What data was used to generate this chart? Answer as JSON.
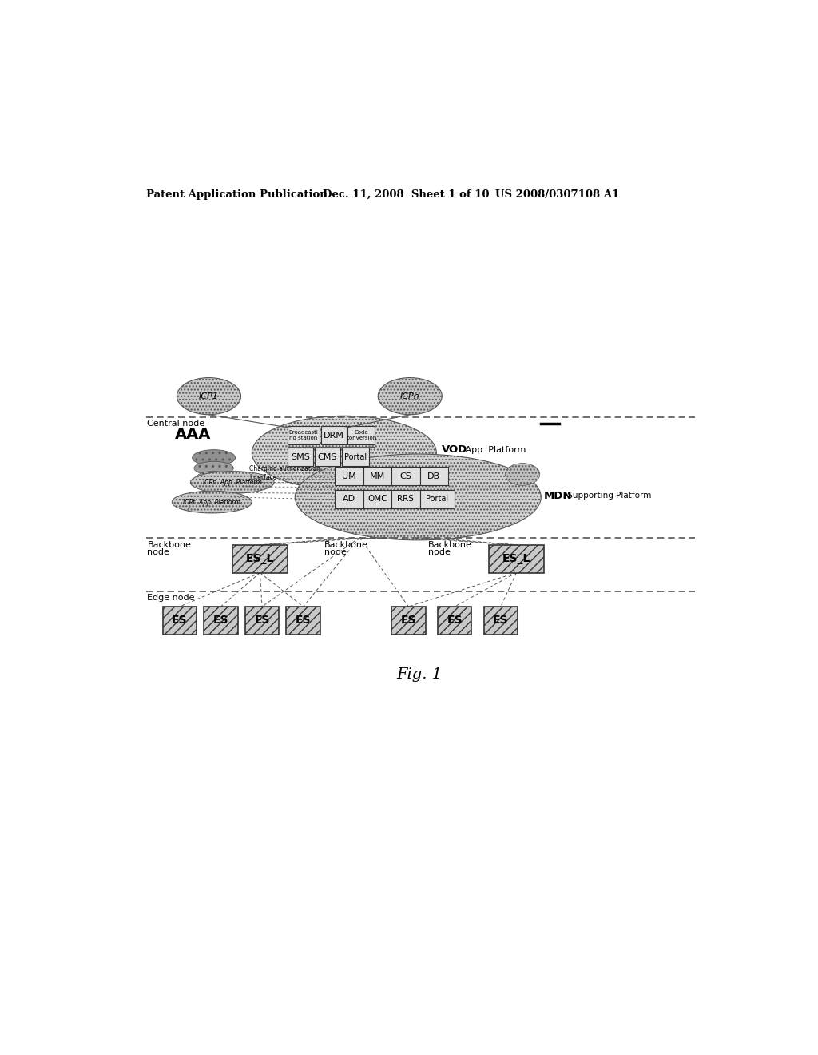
{
  "header_left": "Patent Application Publication",
  "header_mid": "Dec. 11, 2008  Sheet 1 of 10",
  "header_right": "US 2008/0307108 A1",
  "fig_label": "Fig. 1",
  "bg_color": "#ffffff"
}
